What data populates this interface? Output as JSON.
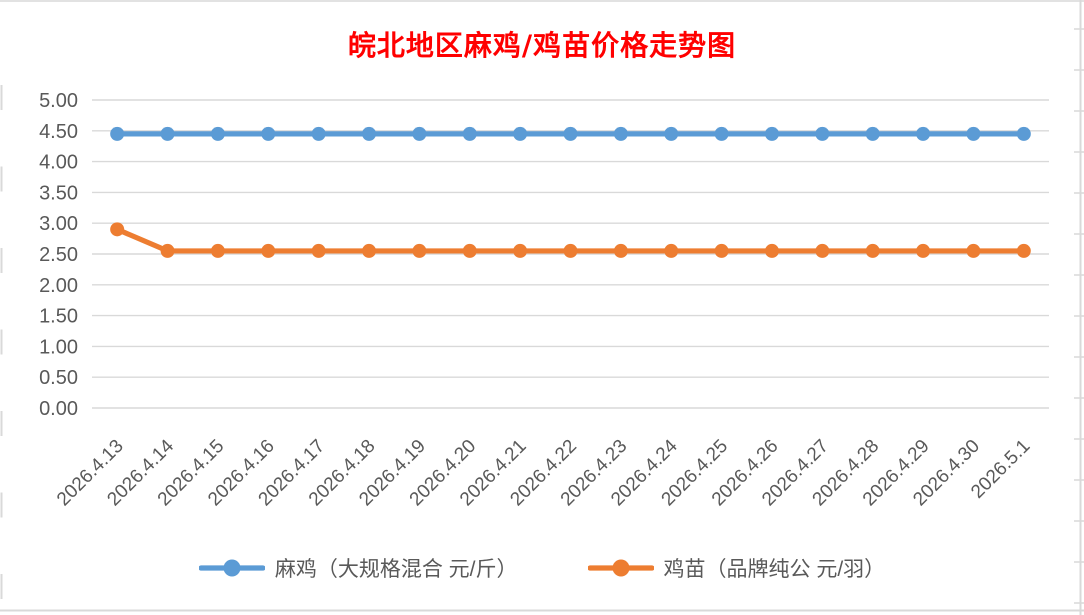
{
  "chart_data": {
    "type": "line",
    "title": "皖北地区麻鸡/鸡苗价格走势图",
    "title_color": "#FF0000",
    "categories": [
      "2026.4.13",
      "2026.4.14",
      "2026.4.15",
      "2026.4.16",
      "2026.4.17",
      "2026.4.18",
      "2026.4.19",
      "2026.4.20",
      "2026.4.21",
      "2026.4.22",
      "2026.4.23",
      "2026.4.24",
      "2026.4.25",
      "2026.4.26",
      "2026.4.27",
      "2026.4.28",
      "2026.4.29",
      "2026.4.30",
      "2026.5.1"
    ],
    "series": [
      {
        "name": "麻鸡（大规格混合 元/斤）",
        "color": "#5B9BD5",
        "values": [
          4.45,
          4.45,
          4.45,
          4.45,
          4.45,
          4.45,
          4.45,
          4.45,
          4.45,
          4.45,
          4.45,
          4.45,
          4.45,
          4.45,
          4.45,
          4.45,
          4.45,
          4.45,
          4.45
        ]
      },
      {
        "name": "鸡苗（品牌纯公 元/羽）",
        "color": "#ED7D31",
        "values": [
          2.9,
          2.55,
          2.55,
          2.55,
          2.55,
          2.55,
          2.55,
          2.55,
          2.55,
          2.55,
          2.55,
          2.55,
          2.55,
          2.55,
          2.55,
          2.55,
          2.55,
          2.55,
          2.55
        ]
      }
    ],
    "ylim": [
      0,
      5
    ],
    "ystep": 0.5,
    "ytick_labels": [
      "0.00",
      "0.50",
      "1.00",
      "1.50",
      "2.00",
      "2.50",
      "3.00",
      "3.50",
      "4.00",
      "4.50",
      "5.00"
    ],
    "grid": true,
    "legend_position": "bottom",
    "axis_text_color": "#595959",
    "gridline_color": "#D9D9D9",
    "xlabel": "",
    "ylabel": ""
  }
}
